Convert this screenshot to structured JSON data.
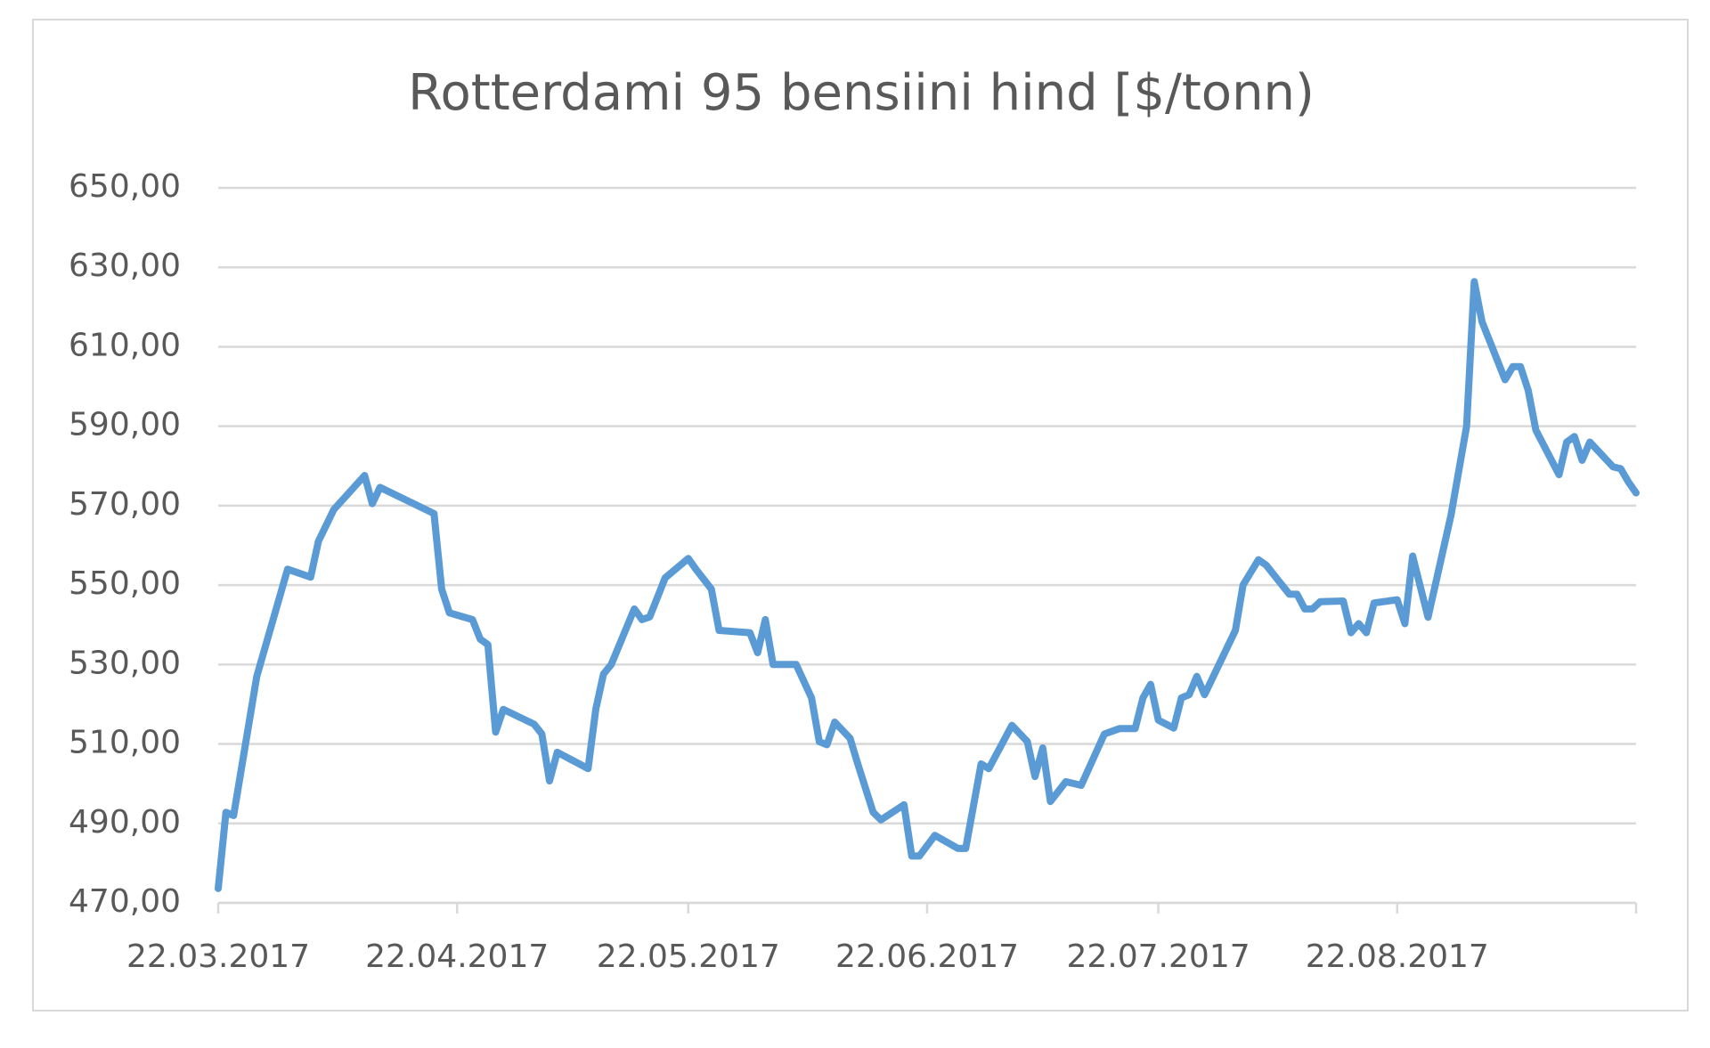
{
  "chart_data": {
    "type": "line",
    "title": "Rotterdami 95 bensiini hind [$/tonn)",
    "x": [
      "22.03.2017",
      "23.03.2017",
      "24.03.2017",
      "27.03.2017",
      "31.03.2017",
      "03.04.2017",
      "04.04.2017",
      "06.04.2017",
      "10.04.2017",
      "11.04.2017",
      "12.04.2017",
      "19.04.2017",
      "20.04.2017",
      "21.04.2017",
      "24.04.2017",
      "25.04.2017",
      "26.04.2017",
      "27.04.2017",
      "28.04.2017",
      "02.05.2017",
      "03.05.2017",
      "04.05.2017",
      "05.05.2017",
      "09.05.2017",
      "10.05.2017",
      "11.05.2017",
      "12.05.2017",
      "15.05.2017",
      "16.05.2017",
      "17.05.2017",
      "19.05.2017",
      "22.05.2017",
      "23.05.2017",
      "25.05.2017",
      "26.05.2017",
      "30.05.2017",
      "31.05.2017",
      "01.06.2017",
      "02.06.2017",
      "05.06.2017",
      "07.06.2017",
      "08.06.2017",
      "09.06.2017",
      "10.06.2017",
      "12.06.2017",
      "13.06.2017",
      "15.06.2017",
      "16.06.2017",
      "19.06.2017",
      "20.06.2017",
      "21.06.2017",
      "23.06.2017",
      "26.06.2017",
      "27.06.2017",
      "29.06.2017",
      "30.06.2017",
      "03.07.2017",
      "05.07.2017",
      "06.07.2017",
      "07.07.2017",
      "08.07.2017",
      "10.07.2017",
      "12.07.2017",
      "15.07.2017",
      "17.07.2017",
      "19.07.2017",
      "20.07.2017",
      "21.07.2017",
      "22.07.2017",
      "24.07.2017",
      "25.07.2017",
      "26.07.2017",
      "27.07.2017",
      "28.07.2017",
      "01.08.2017",
      "02.08.2017",
      "04.08.2017",
      "05.08.2017",
      "08.08.2017",
      "09.08.2017",
      "10.08.2017",
      "11.08.2017",
      "12.08.2017",
      "15.08.2017",
      "16.08.2017",
      "17.08.2017",
      "18.08.2017",
      "19.08.2017",
      "22.08.2017",
      "23.08.2017",
      "24.08.2017",
      "26.08.2017",
      "29.08.2017",
      "31.08.2017",
      "01.09.2017",
      "02.09.2017",
      "05.09.2017",
      "06.09.2017",
      "07.09.2017",
      "08.09.2017",
      "09.09.2017",
      "12.09.2017",
      "13.09.2017",
      "14.09.2017",
      "15.09.2017",
      "16.09.2017",
      "19.09.2017",
      "20.09.2017",
      "21.09.2017",
      "22.09.2017"
    ],
    "series": [
      {
        "name": "Rotterdami 95",
        "color": "#5b9bd5",
        "values": [
          473.6,
          492.8,
          492,
          527,
          554,
          552,
          561,
          569,
          577.6,
          570.5,
          574.6,
          568,
          549,
          543,
          541.3,
          536.4,
          535,
          513,
          518.7,
          515,
          512.5,
          500.7,
          507.9,
          503.8,
          518.8,
          527.6,
          530,
          544,
          541.3,
          542,
          551.8,
          556.7,
          554,
          549,
          538.6,
          538,
          533,
          541.3,
          530,
          530,
          521.6,
          510.6,
          509.8,
          515.5,
          511.4,
          505,
          492.8,
          490.9,
          494.7,
          481.8,
          481.8,
          487,
          483.7,
          483.7,
          505,
          503.8,
          514.7,
          510.6,
          501.8,
          509,
          495.5,
          500.5,
          499.6,
          512.5,
          513.9,
          513.9,
          521.6,
          525,
          516,
          514,
          521.6,
          522.4,
          527,
          522.4,
          538.6,
          550,
          556.4,
          555,
          547.7,
          547.7,
          544,
          544,
          545.8,
          546,
          538,
          540.3,
          538,
          545.5,
          546.3,
          540.3,
          557.3,
          541.9,
          567.7,
          590,
          626.4,
          616.3,
          601.7,
          605,
          605,
          599,
          589,
          577.8,
          586,
          587.4,
          581.4,
          586,
          579.8,
          579.3,
          576,
          573.2
        ]
      }
    ],
    "xlim": [
      "22.03.2017",
      "22.09.2017"
    ],
    "xticks": [
      "22.03.2017",
      "22.04.2017",
      "22.05.2017",
      "22.06.2017",
      "22.07.2017",
      "22.08.2017"
    ],
    "ylim": [
      470,
      650
    ],
    "yticks": [
      {
        "value": 470,
        "label": "470,00"
      },
      {
        "value": 490,
        "label": "490,00"
      },
      {
        "value": 510,
        "label": "510,00"
      },
      {
        "value": 530,
        "label": "530,00"
      },
      {
        "value": 550,
        "label": "550,00"
      },
      {
        "value": 570,
        "label": "570,00"
      },
      {
        "value": 590,
        "label": "590,00"
      },
      {
        "value": 610,
        "label": "610,00"
      },
      {
        "value": 630,
        "label": "630,00"
      },
      {
        "value": 650,
        "label": "650,00"
      }
    ],
    "grid": true
  }
}
